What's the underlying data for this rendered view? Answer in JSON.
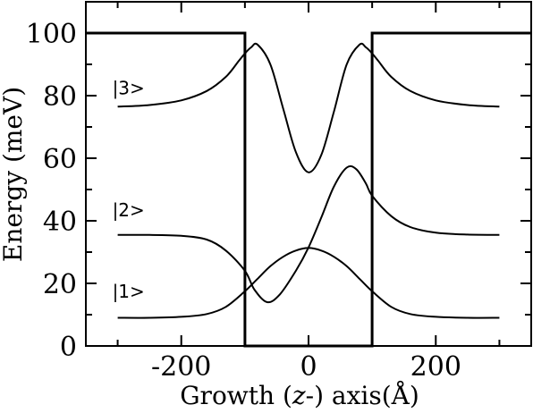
{
  "chart_data": {
    "type": "line",
    "xlabel_parts": {
      "prefix": "Growth (",
      "italic": "z",
      "suffix": "-) axis(Å)"
    },
    "ylabel": "Energy (meV)",
    "xlim": [
      -350,
      350
    ],
    "ylim": [
      0,
      110
    ],
    "xticks": [
      {
        "value": -200,
        "label": "-200"
      },
      {
        "value": 0,
        "label": "0"
      },
      {
        "value": 200,
        "label": "200"
      }
    ],
    "yticks": [
      {
        "value": 0,
        "label": "0"
      },
      {
        "value": 20,
        "label": "20"
      },
      {
        "value": 40,
        "label": "40"
      },
      {
        "value": 60,
        "label": "60"
      },
      {
        "value": 80,
        "label": "80"
      },
      {
        "value": 100,
        "label": "100"
      }
    ],
    "grid": false,
    "line_color": "#000000",
    "potential": {
      "x": [
        -350,
        -100,
        -100,
        100,
        100,
        350
      ],
      "y": [
        100,
        100,
        0,
        0,
        100,
        100
      ]
    },
    "series": [
      {
        "label": "|1>",
        "label_at": {
          "x": -300,
          "y": 17.5
        },
        "x": [
          -300,
          -250,
          -200,
          -160,
          -130,
          -100,
          -80,
          -60,
          -40,
          -20,
          0,
          20,
          40,
          60,
          80,
          100,
          130,
          160,
          200,
          250,
          300
        ],
        "y": [
          9,
          9,
          9.3,
          10.2,
          12.5,
          17.5,
          21.5,
          25.5,
          28.5,
          30.5,
          31.3,
          30.5,
          28.5,
          25.5,
          21.5,
          17.5,
          12.5,
          10.2,
          9.3,
          9,
          9
        ]
      },
      {
        "label": "|2>",
        "label_at": {
          "x": -300,
          "y": 43.5
        },
        "x": [
          -300,
          -250,
          -200,
          -160,
          -130,
          -100,
          -85,
          -65,
          -45,
          -20,
          0,
          20,
          40,
          60,
          75,
          90,
          100,
          130,
          160,
          200,
          250,
          300
        ],
        "y": [
          35.5,
          35.5,
          35.2,
          34,
          30.5,
          24,
          18,
          14,
          16.5,
          24,
          31.5,
          41,
          51,
          57,
          56.5,
          52,
          48,
          41.5,
          38,
          36.2,
          35.6,
          35.5
        ]
      },
      {
        "label": "|3>",
        "label_at": {
          "x": -300,
          "y": 82.5
        },
        "x": [
          -300,
          -250,
          -200,
          -160,
          -130,
          -110,
          -100,
          -90,
          -80,
          -60,
          -40,
          -20,
          0,
          20,
          40,
          60,
          80,
          90,
          100,
          110,
          130,
          160,
          200,
          250,
          300
        ],
        "y": [
          76.5,
          77,
          78.5,
          81.5,
          86,
          91,
          93.5,
          95.5,
          96.3,
          90,
          76,
          62,
          55.5,
          61,
          75,
          90,
          96.3,
          95.5,
          93.5,
          91,
          86,
          81.5,
          78.5,
          77,
          76.5
        ]
      }
    ]
  }
}
